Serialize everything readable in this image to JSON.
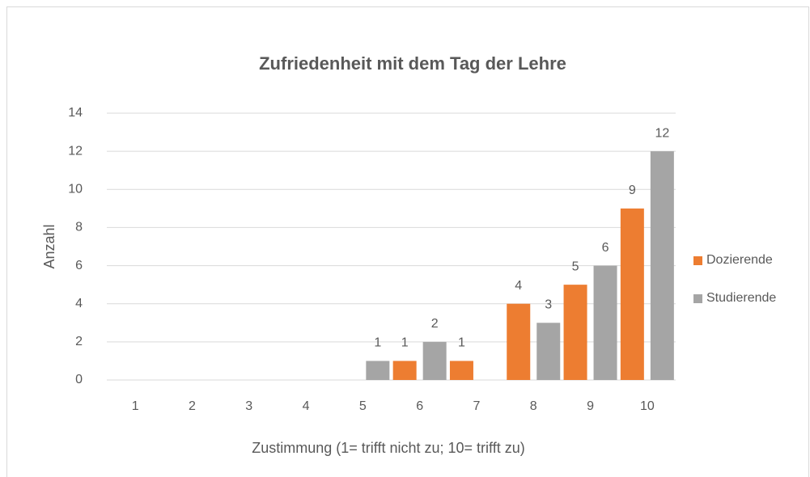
{
  "chart_data": {
    "type": "bar",
    "title": "Zufriedenheit mit dem Tag der Lehre",
    "x_label": "Zustimmung (1= trifft nicht zu; 10= trifft zu)",
    "y_label": "Anzahl",
    "categories": [
      "1",
      "2",
      "3",
      "4",
      "5",
      "6",
      "7",
      "8",
      "9",
      "10"
    ],
    "series": [
      {
        "name": "Dozierende",
        "color": "#ed7d31",
        "values": [
          0,
          0,
          0,
          0,
          0,
          1,
          1,
          4,
          5,
          9
        ]
      },
      {
        "name": "Studierende",
        "color": "#a5a5a5",
        "values": [
          0,
          0,
          0,
          0,
          1,
          2,
          0,
          3,
          6,
          12
        ]
      }
    ],
    "ylim": [
      0,
      14
    ],
    "yticks": [
      0,
      2,
      4,
      6,
      8,
      10,
      12,
      14
    ],
    "grid": true,
    "legend": "right"
  }
}
